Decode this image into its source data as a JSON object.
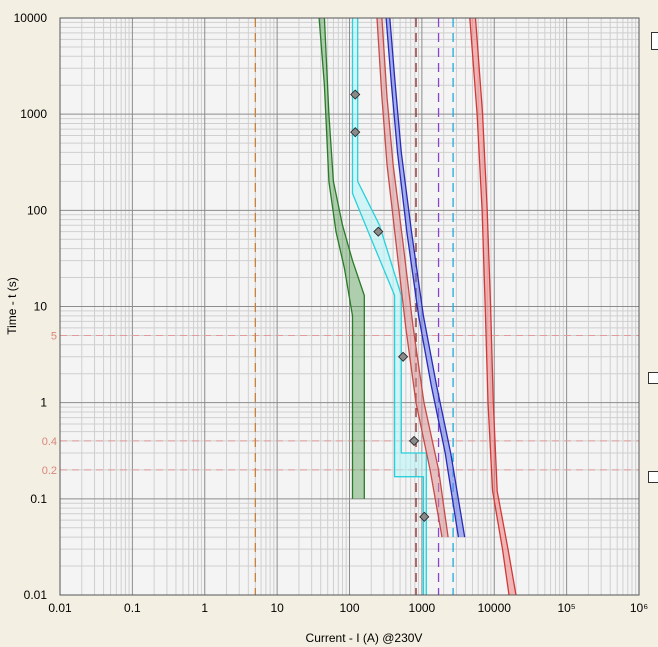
{
  "chart_data": {
    "type": "line",
    "x_scale": "log",
    "y_scale": "log",
    "xlabel": "Current - I (A) @230V",
    "ylabel": "Time - t (s)",
    "xlim": [
      0.01,
      1000000
    ],
    "ylim": [
      0.01,
      10000
    ],
    "grid": true,
    "x_ticks": [
      "0.01",
      "0.1",
      "1",
      "10",
      "100",
      "1000",
      "10000",
      "10⁵",
      "10⁶"
    ],
    "y_ticks": [
      "0.01",
      "0.1",
      "1",
      "10",
      "100",
      "1000",
      "10000"
    ],
    "reference_lines": [
      {
        "t": 5,
        "label": "5"
      },
      {
        "t": 0.4,
        "label": "0.4"
      },
      {
        "t": 0.2,
        "label": "0.2"
      }
    ],
    "vertical_lines": [
      {
        "x": 5,
        "color": "#c8823a"
      },
      {
        "x": 830,
        "color": "#8b2a2a"
      },
      {
        "x": 1700,
        "color": "#8a44cc"
      },
      {
        "x": 2700,
        "color": "#22aadd"
      }
    ],
    "bands": [
      {
        "color": "#2a7a2a",
        "fill": "rgba(70,150,70,0.40)",
        "left": [
          [
            38,
            10000
          ],
          [
            45,
            2000
          ],
          [
            52,
            200
          ],
          [
            65,
            60
          ],
          [
            85,
            25
          ],
          [
            110,
            8
          ],
          [
            110,
            0.1
          ]
        ],
        "right": [
          [
            45,
            10000
          ],
          [
            52,
            1000
          ],
          [
            60,
            200
          ],
          [
            80,
            70
          ],
          [
            110,
            30
          ],
          [
            160,
            13
          ],
          [
            160,
            0.1
          ]
        ]
      },
      {
        "color": "#28d0dc",
        "fill": "rgba(180,245,248,0.55)",
        "left": [
          [
            110,
            10000
          ],
          [
            110,
            150
          ],
          [
            200,
            50
          ],
          [
            420,
            13
          ],
          [
            420,
            0.17
          ],
          [
            1050,
            0.17
          ],
          [
            1050,
            0.01
          ]
        ],
        "right": [
          [
            130,
            10000
          ],
          [
            130,
            200
          ],
          [
            260,
            70
          ],
          [
            520,
            13
          ],
          [
            520,
            0.3
          ],
          [
            1150,
            0.3
          ],
          [
            1150,
            0.01
          ]
        ]
      },
      {
        "color": "#c84a4a",
        "fill": "rgba(215,140,140,0.50)",
        "left": [
          [
            240,
            10000
          ],
          [
            280,
            1500
          ],
          [
            330,
            300
          ],
          [
            440,
            45
          ],
          [
            600,
            6
          ],
          [
            830,
            1
          ],
          [
            1300,
            0.2
          ],
          [
            1900,
            0.04
          ]
        ],
        "right": [
          [
            280,
            10000
          ],
          [
            330,
            1500
          ],
          [
            400,
            300
          ],
          [
            550,
            45
          ],
          [
            760,
            6
          ],
          [
            1070,
            1
          ],
          [
            1700,
            0.2
          ],
          [
            2300,
            0.04
          ]
        ]
      },
      {
        "color": "#2a2ab8",
        "fill": "rgba(100,120,230,0.55)",
        "left": [
          [
            320,
            10000
          ],
          [
            380,
            2000
          ],
          [
            460,
            400
          ],
          [
            620,
            60
          ],
          [
            900,
            8
          ],
          [
            1350,
            1.5
          ],
          [
            2100,
            0.3
          ],
          [
            3200,
            0.04
          ]
        ],
        "right": [
          [
            360,
            10000
          ],
          [
            430,
            2000
          ],
          [
            520,
            400
          ],
          [
            720,
            60
          ],
          [
            1050,
            8
          ],
          [
            1600,
            1.5
          ],
          [
            2500,
            0.3
          ],
          [
            3900,
            0.04
          ]
        ]
      },
      {
        "color": "#d23838",
        "fill": "rgba(235,120,120,0.50)",
        "left": [
          [
            4600,
            10000
          ],
          [
            5800,
            1000
          ],
          [
            6800,
            100
          ],
          [
            7500,
            10
          ],
          [
            8200,
            1
          ],
          [
            9500,
            0.12
          ],
          [
            13000,
            0.03
          ],
          [
            16000,
            0.01
          ]
        ],
        "right": [
          [
            5500,
            10000
          ],
          [
            6900,
            1000
          ],
          [
            8000,
            100
          ],
          [
            8900,
            10
          ],
          [
            9700,
            1
          ],
          [
            11000,
            0.12
          ],
          [
            15500,
            0.03
          ],
          [
            20000,
            0.01
          ]
        ]
      }
    ],
    "markers": [
      [
        120,
        1600
      ],
      [
        120,
        650
      ],
      [
        250,
        60
      ],
      [
        550,
        3
      ],
      [
        780,
        0.4
      ],
      [
        1080,
        0.065
      ]
    ]
  }
}
